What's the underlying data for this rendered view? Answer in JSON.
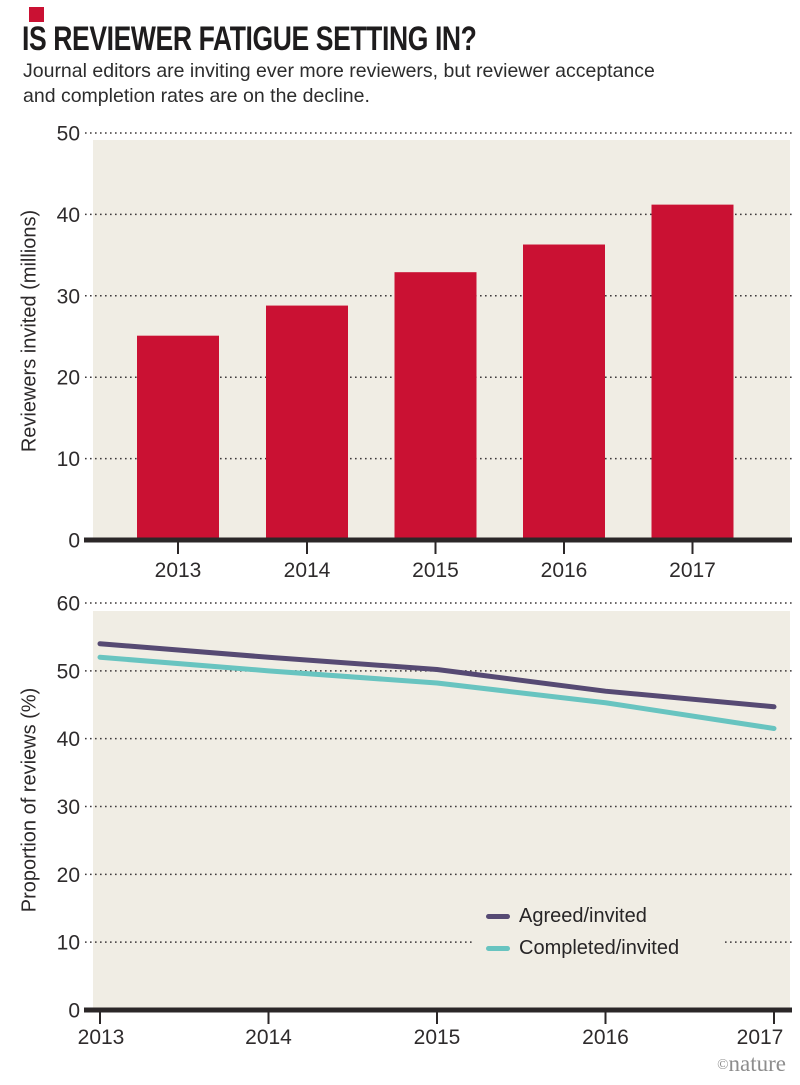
{
  "header": {
    "title": "IS REVIEWER FATIGUE SETTING IN?",
    "subtitle_line1": "Journal editors are inviting ever more reviewers, but reviewer acceptance",
    "subtitle_line2": "and completion rates are on the decline."
  },
  "colors": {
    "accent_red": "#ca1133",
    "line_purple": "#564a73",
    "line_teal": "#68c4c0",
    "plot_background": "#f0ede4",
    "axis_ink": "#2b2728",
    "watermark_gray": "#8d8d8d"
  },
  "chart_data": [
    {
      "type": "bar",
      "title": "",
      "xlabel": "",
      "ylabel": "Reviewers invited (millions)",
      "categories": [
        "2013",
        "2014",
        "2015",
        "2016",
        "2017"
      ],
      "values": [
        25.1,
        28.8,
        32.9,
        36.3,
        41.2
      ],
      "ylim": [
        0,
        50
      ],
      "yticks": [
        0,
        10,
        20,
        30,
        40,
        50
      ],
      "grid": "dotted horizontal",
      "bar_color": "#ca1133"
    },
    {
      "type": "line",
      "title": "",
      "xlabel": "",
      "ylabel": "Proportion of reviews (%)",
      "x": [
        "2013",
        "2014",
        "2015",
        "2016",
        "2017"
      ],
      "series": [
        {
          "name": "Agreed/invited",
          "color": "#564a73",
          "values": [
            54.0,
            52.0,
            50.2,
            47.0,
            44.7
          ]
        },
        {
          "name": "Completed/invited",
          "color": "#68c4c0",
          "values": [
            52.0,
            50.0,
            48.2,
            45.3,
            41.5
          ]
        }
      ],
      "ylim": [
        0,
        60
      ],
      "yticks": [
        0,
        10,
        20,
        30,
        40,
        50,
        60
      ],
      "grid": "dotted horizontal",
      "legend_position": "inside lower right"
    }
  ],
  "footer": {
    "copyright": "©",
    "brand": "nature"
  }
}
